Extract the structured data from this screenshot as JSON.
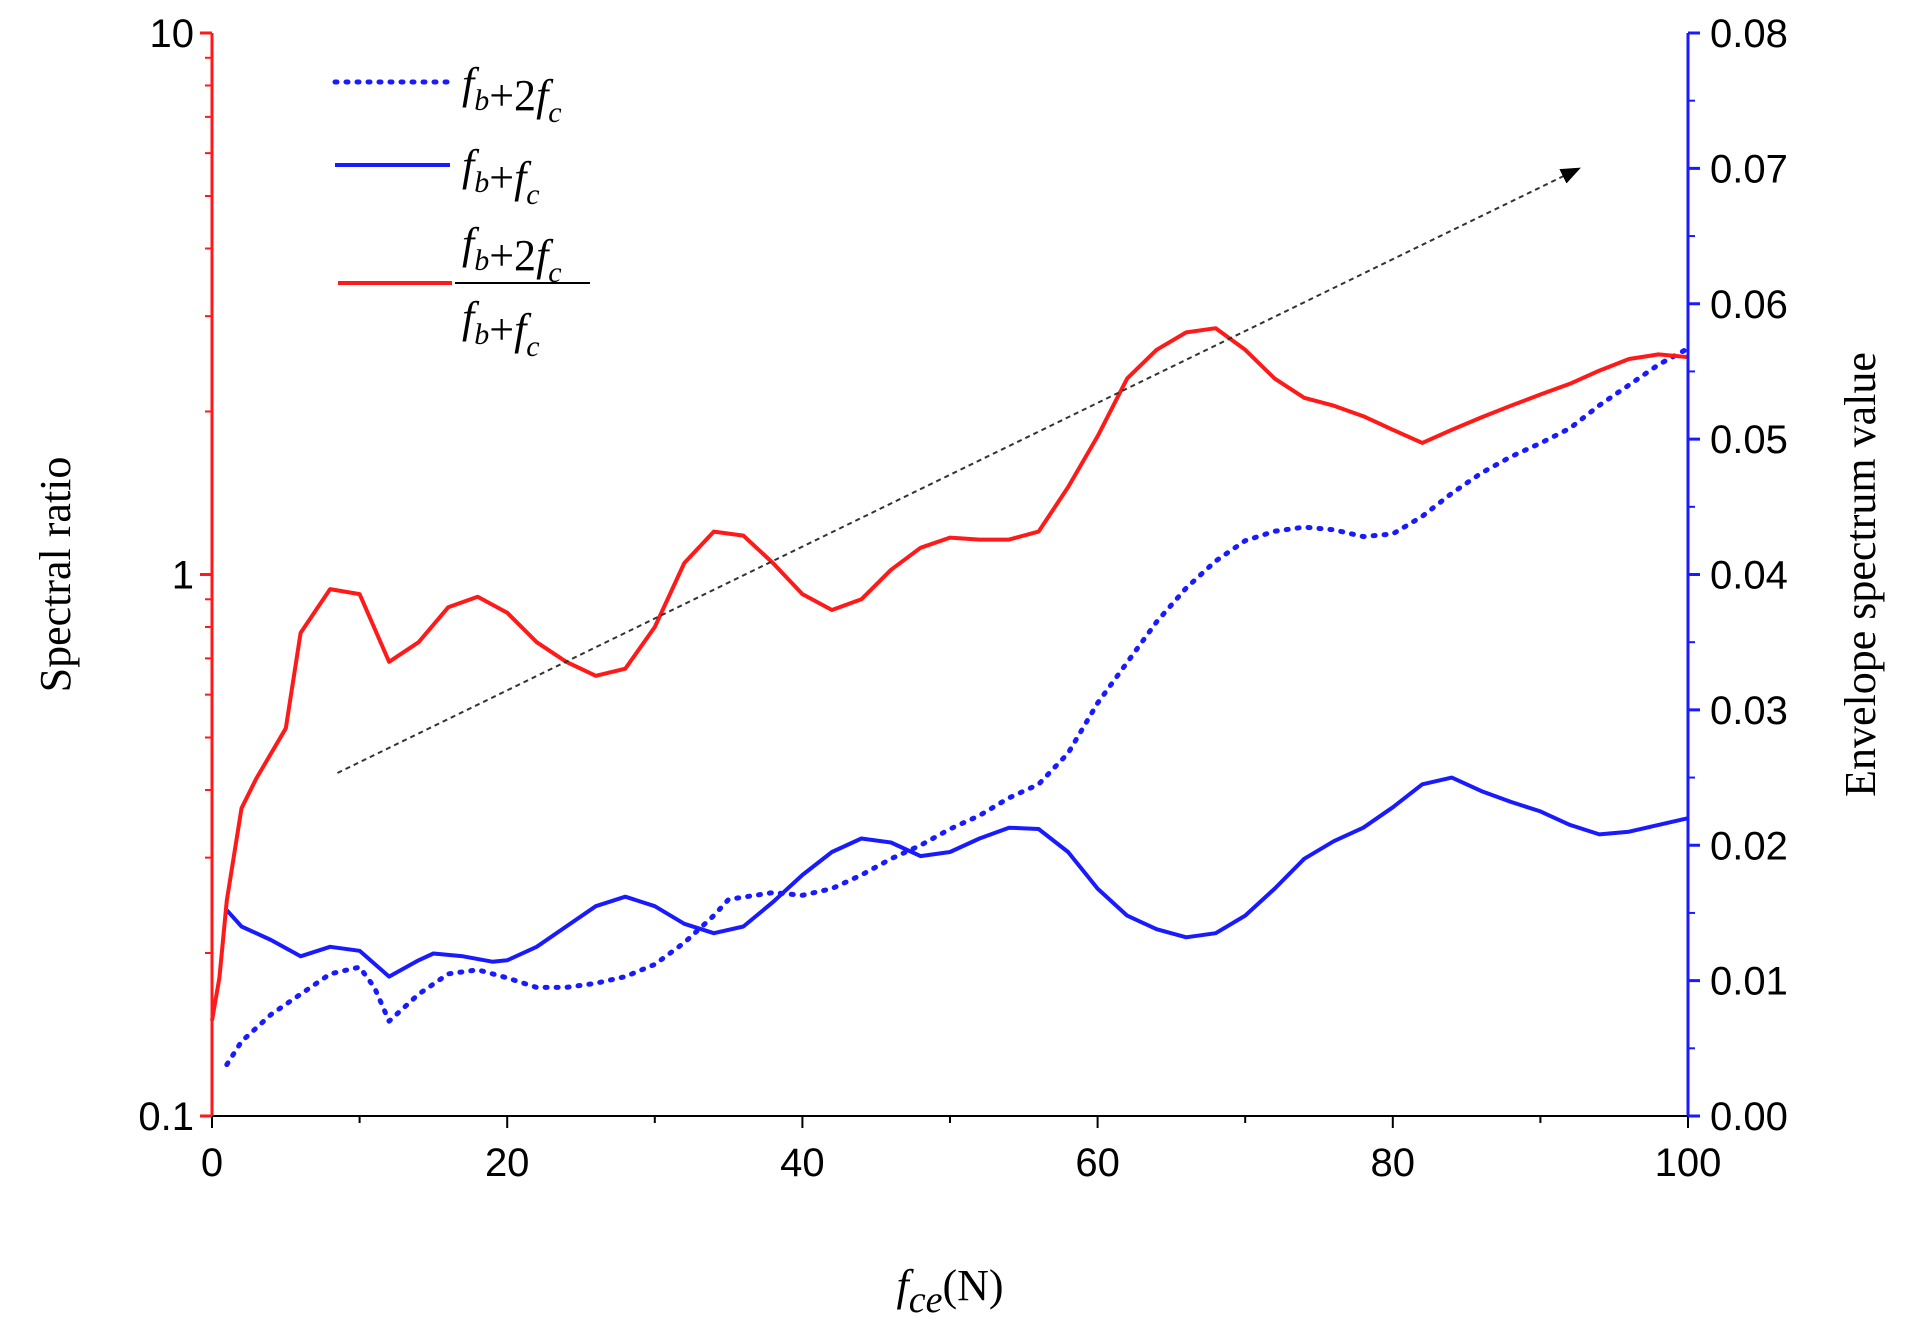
{
  "chart_data": {
    "type": "line",
    "title": "",
    "xlabel": {
      "symbol": "f",
      "subscript": "ce",
      "unit": "(N)"
    },
    "ylabel_left": "Spectral ratio",
    "ylabel_right": "Envelope spectrum value",
    "xlim": [
      0,
      100
    ],
    "ylim_left": [
      0.1,
      10
    ],
    "ylim_left_scale": "log",
    "ylim_right": [
      0,
      0.08
    ],
    "x_ticks": [
      "0",
      "20",
      "40",
      "60",
      "80",
      "100"
    ],
    "y_left_ticks": [
      "0.1",
      "1",
      "10"
    ],
    "y_right_ticks": [
      "0.00",
      "0.01",
      "0.02",
      "0.03",
      "0.04",
      "0.05",
      "0.06",
      "0.07",
      "0.08"
    ],
    "legend_position": "top-left",
    "trend_arrow": {
      "from": [
        8.5,
        0.43
      ],
      "to": [
        92.5,
        5.6
      ],
      "style": "dashed"
    },
    "series": [
      {
        "name": "fb+2fc",
        "legend": [
          {
            "t": "f",
            "sub": "b"
          },
          {
            "t": "+2"
          },
          {
            "t": "f",
            "sub": "c"
          }
        ],
        "axis": "right",
        "style": "dotted",
        "color": "#1a1aff",
        "x": [
          1,
          2,
          4,
          6,
          8,
          10,
          11,
          12,
          14,
          16,
          18,
          20,
          22,
          24,
          26,
          28,
          30,
          32,
          34,
          35,
          38,
          40,
          42,
          44,
          46,
          48,
          50,
          52,
          54,
          56,
          58,
          60,
          62,
          64,
          66,
          68,
          70,
          72,
          74,
          76,
          78,
          80,
          82,
          84,
          86,
          88,
          90,
          92,
          94,
          96,
          98,
          100
        ],
        "y": [
          0.0038,
          0.0055,
          0.0075,
          0.009,
          0.0105,
          0.011,
          0.0095,
          0.007,
          0.009,
          0.0105,
          0.0108,
          0.0102,
          0.0095,
          0.0095,
          0.0098,
          0.0103,
          0.0112,
          0.0128,
          0.0148,
          0.016,
          0.0165,
          0.0163,
          0.0168,
          0.0178,
          0.019,
          0.02,
          0.0212,
          0.0222,
          0.0235,
          0.0245,
          0.0268,
          0.0305,
          0.0335,
          0.0365,
          0.039,
          0.041,
          0.0425,
          0.0432,
          0.0435,
          0.0433,
          0.0428,
          0.043,
          0.0443,
          0.046,
          0.0475,
          0.0487,
          0.0497,
          0.0508,
          0.0525,
          0.054,
          0.0555,
          0.0567
        ]
      },
      {
        "name": "fb+fc",
        "legend": [
          {
            "t": "f",
            "sub": "b"
          },
          {
            "t": "+"
          },
          {
            "t": "f",
            "sub": "c"
          }
        ],
        "axis": "right",
        "style": "solid",
        "color": "#1a1aff",
        "x": [
          1,
          2,
          4,
          6,
          8,
          10,
          12,
          14,
          15,
          17,
          19,
          20,
          22,
          24,
          26,
          28,
          30,
          32,
          34,
          36,
          38,
          40,
          42,
          44,
          46,
          48,
          50,
          52,
          54,
          56,
          58,
          60,
          62,
          64,
          66,
          68,
          70,
          72,
          74,
          76,
          78,
          80,
          82,
          84,
          86,
          88,
          90,
          92,
          94,
          96,
          98,
          100
        ],
        "y": [
          0.0152,
          0.014,
          0.013,
          0.0118,
          0.0125,
          0.0122,
          0.0103,
          0.0115,
          0.012,
          0.0118,
          0.0114,
          0.0115,
          0.0125,
          0.014,
          0.0155,
          0.0162,
          0.0155,
          0.0142,
          0.0135,
          0.014,
          0.0158,
          0.0178,
          0.0195,
          0.0205,
          0.0202,
          0.0192,
          0.0195,
          0.0205,
          0.0213,
          0.0212,
          0.0195,
          0.0168,
          0.0148,
          0.0138,
          0.0132,
          0.0135,
          0.0148,
          0.0168,
          0.019,
          0.0203,
          0.0213,
          0.0228,
          0.0245,
          0.025,
          0.024,
          0.0232,
          0.0225,
          0.0215,
          0.0208,
          0.021,
          0.0215,
          0.022
        ]
      },
      {
        "name": "(fb+2fc)/(fb+fc)",
        "legend_numerator": [
          {
            "t": "f",
            "sub": "b"
          },
          {
            "t": "+2"
          },
          {
            "t": "f",
            "sub": "c"
          }
        ],
        "legend_denominator": [
          {
            "t": "f",
            "sub": "b"
          },
          {
            "t": "+"
          },
          {
            "t": "f",
            "sub": "c"
          }
        ],
        "axis": "left",
        "style": "solid",
        "color": "#ff1a1a",
        "x": [
          0,
          0.5,
          1,
          2,
          3,
          5,
          6,
          8,
          9,
          10,
          12,
          14,
          16,
          18,
          20,
          22,
          24,
          26,
          28,
          30,
          32,
          34,
          36,
          38,
          40,
          42,
          44,
          46,
          48,
          50,
          52,
          54,
          56,
          58,
          60,
          62,
          64,
          66,
          68,
          70,
          72,
          74,
          76,
          78,
          80,
          82,
          84,
          86,
          88,
          90,
          92,
          94,
          96,
          98,
          100
        ],
        "y": [
          0.15,
          0.18,
          0.25,
          0.37,
          0.42,
          0.52,
          0.78,
          0.94,
          0.93,
          0.92,
          0.69,
          0.75,
          0.87,
          0.91,
          0.85,
          0.75,
          0.69,
          0.65,
          0.67,
          0.8,
          1.05,
          1.2,
          1.18,
          1.05,
          0.92,
          0.86,
          0.9,
          1.02,
          1.12,
          1.17,
          1.16,
          1.16,
          1.2,
          1.45,
          1.8,
          2.3,
          2.6,
          2.8,
          2.85,
          2.6,
          2.3,
          2.12,
          2.05,
          1.96,
          1.85,
          1.75,
          1.85,
          1.95,
          2.05,
          2.15,
          2.25,
          2.38,
          2.5,
          2.55,
          2.52
        ]
      }
    ]
  }
}
